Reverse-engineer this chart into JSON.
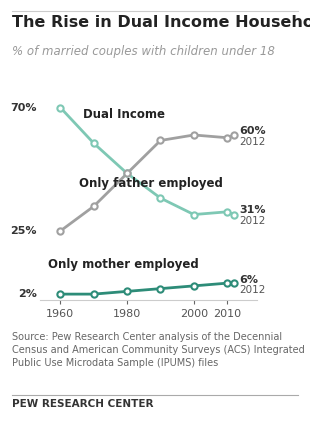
{
  "title": "The Rise in Dual Income Households",
  "subtitle": "% of married couples with children under 18",
  "source_text": "Source: Pew Research Center analysis of the Decennial\nCensus and American Community Surveys (ACS) Integrated\nPublic Use Microdata Sample (IPUMS) files",
  "footer": "PEW RESEARCH CENTER",
  "years": [
    1960,
    1970,
    1980,
    1990,
    2000,
    2010,
    2012
  ],
  "dual_income": [
    25,
    34,
    46,
    58,
    60,
    59,
    60
  ],
  "only_father": [
    70,
    57,
    46,
    37,
    31,
    32,
    31
  ],
  "only_mother": [
    2,
    2,
    3,
    4,
    5,
    6,
    6
  ],
  "teal_color": "#7ec8b4",
  "gray_color": "#a0a0a0",
  "dark_teal_color": "#2d8c78",
  "background_color": "#ffffff",
  "title_fontsize": 11.5,
  "subtitle_fontsize": 8.5,
  "tick_fontsize": 8,
  "label_fontsize": 8,
  "source_fontsize": 7,
  "footer_fontsize": 7.5
}
